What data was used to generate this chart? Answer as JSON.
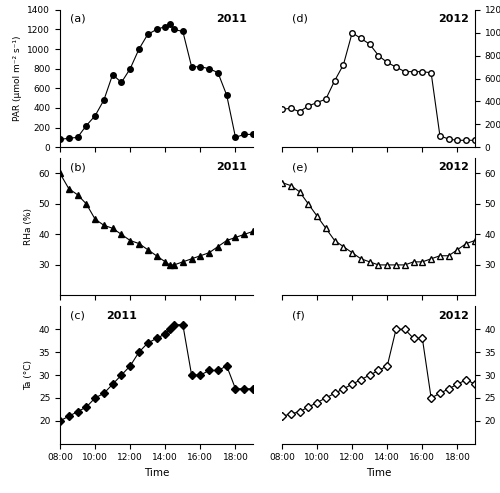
{
  "par_2011_t": [
    8.0,
    8.5,
    9.0,
    9.5,
    10.0,
    10.5,
    11.0,
    11.5,
    12.0,
    12.5,
    13.0,
    13.5,
    14.0,
    14.25,
    14.5,
    15.0,
    15.5,
    16.0,
    16.5,
    17.0,
    17.5,
    18.0,
    18.5,
    19.0
  ],
  "par_2011_y": [
    80,
    90,
    100,
    220,
    320,
    480,
    740,
    660,
    800,
    1000,
    1150,
    1200,
    1230,
    1260,
    1200,
    1180,
    820,
    820,
    800,
    760,
    530,
    100,
    130,
    130
  ],
  "par_2012_t": [
    8.0,
    8.5,
    9.0,
    9.5,
    10.0,
    10.5,
    11.0,
    11.5,
    12.0,
    12.5,
    13.0,
    13.5,
    14.0,
    14.5,
    15.0,
    15.5,
    16.0,
    16.5,
    17.0,
    17.5,
    18.0,
    18.5,
    19.0
  ],
  "par_2012_y": [
    330,
    340,
    310,
    360,
    390,
    420,
    580,
    720,
    1000,
    950,
    900,
    800,
    740,
    700,
    660,
    660,
    660,
    650,
    100,
    70,
    60,
    60,
    60
  ],
  "rha_2011_t": [
    8.0,
    8.5,
    9.0,
    9.5,
    10.0,
    10.5,
    11.0,
    11.5,
    12.0,
    12.5,
    13.0,
    13.5,
    14.0,
    14.25,
    14.5,
    15.0,
    15.5,
    16.0,
    16.5,
    17.0,
    17.5,
    18.0,
    18.5,
    19.0
  ],
  "rha_2011_y": [
    60,
    55,
    53,
    50,
    45,
    43,
    42,
    40,
    38,
    37,
    35,
    33,
    31,
    30,
    30,
    31,
    32,
    33,
    34,
    36,
    38,
    39,
    40,
    41
  ],
  "rha_2012_t": [
    8.0,
    8.5,
    9.0,
    9.5,
    10.0,
    10.5,
    11.0,
    11.5,
    12.0,
    12.5,
    13.0,
    13.5,
    14.0,
    14.5,
    15.0,
    15.5,
    16.0,
    16.5,
    17.0,
    17.5,
    18.0,
    18.5,
    19.0
  ],
  "rha_2012_y": [
    57,
    56,
    54,
    50,
    46,
    42,
    38,
    36,
    34,
    32,
    31,
    30,
    30,
    30,
    30,
    31,
    31,
    32,
    33,
    33,
    35,
    37,
    38
  ],
  "ta_2011_t": [
    8.0,
    8.5,
    9.0,
    9.5,
    10.0,
    10.5,
    11.0,
    11.5,
    12.0,
    12.5,
    13.0,
    13.5,
    14.0,
    14.25,
    14.5,
    15.0,
    15.5,
    16.0,
    16.5,
    17.0,
    17.5,
    18.0,
    18.5,
    19.0
  ],
  "ta_2011_y": [
    20,
    21,
    22,
    23,
    25,
    26,
    28,
    30,
    32,
    35,
    37,
    38,
    39,
    40,
    41,
    41,
    30,
    30,
    31,
    31,
    32,
    27,
    27,
    27
  ],
  "ta_2012_t": [
    8.0,
    8.5,
    9.0,
    9.5,
    10.0,
    10.5,
    11.0,
    11.5,
    12.0,
    12.5,
    13.0,
    13.5,
    14.0,
    14.5,
    15.0,
    15.5,
    16.0,
    16.5,
    17.0,
    17.5,
    18.0,
    18.5,
    19.0
  ],
  "ta_2012_y": [
    21,
    21.5,
    22,
    23,
    24,
    25,
    26,
    27,
    28,
    29,
    30,
    31,
    32,
    40,
    40,
    38,
    38,
    25,
    26,
    27,
    28,
    29,
    28
  ],
  "xlim": [
    8,
    19
  ],
  "xticks": [
    8,
    10,
    12,
    14,
    16,
    18
  ],
  "xticklabels": [
    "08:00",
    "10:00",
    "12:00",
    "14:00",
    "16:00",
    "18:00"
  ],
  "par_2011_ylim": [
    0,
    1400
  ],
  "par_2011_yticks": [
    0,
    200,
    400,
    600,
    800,
    1000,
    1200,
    1400
  ],
  "par_2012_ylim": [
    0,
    1200
  ],
  "par_2012_yticks": [
    0,
    200,
    400,
    600,
    800,
    1000,
    1200
  ],
  "rha_ylim": [
    20,
    65
  ],
  "rha_yticks": [
    30,
    40,
    50,
    60
  ],
  "ta_ylim": [
    15,
    45
  ],
  "ta_yticks": [
    20,
    25,
    30,
    35,
    40
  ],
  "par_ylabel": "PAR (μmol m⁻² s⁻¹)",
  "rha_ylabel": "RHa (%)",
  "ta_ylabel": "Ta (°C)",
  "xlabel": "Time",
  "label_a": "(a)",
  "label_b": "(b)",
  "label_c": "(c)",
  "label_d": "(d)",
  "label_e": "(e)",
  "label_f": "(f)",
  "year_2011": "2011",
  "year_2012": "2012"
}
